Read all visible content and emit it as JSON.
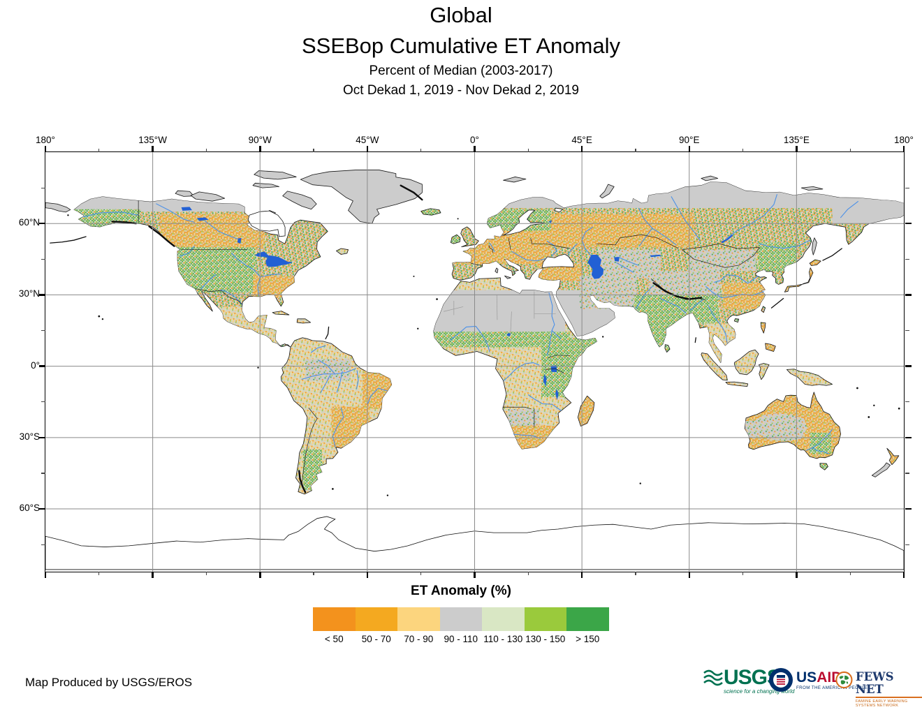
{
  "title": {
    "line1": "Global",
    "line2": "SSEBop Cumulative ET Anomaly"
  },
  "subtitle": {
    "line1": "Percent of Median (2003-2017)",
    "line2": "Oct Dekad 1, 2019 - Nov Dekad 2, 2019"
  },
  "axes": {
    "top_labels": [
      "180°",
      "135°W",
      "90°W",
      "45°W",
      "0°",
      "45°E",
      "90°E",
      "135°E",
      "180°"
    ],
    "left_labels": [
      "60°N",
      "30°N",
      "0°",
      "30°S",
      "60°S"
    ]
  },
  "legend": {
    "title": "ET Anomaly (%)",
    "classes": [
      {
        "label": "< 50",
        "color": "#F3921D"
      },
      {
        "label": "50 - 70",
        "color": "#F4A920"
      },
      {
        "label": "70 - 90",
        "color": "#FCD57E"
      },
      {
        "label": "90 - 110",
        "color": "#CCCCCC"
      },
      {
        "label": "110 - 130",
        "color": "#D9E7C4"
      },
      {
        "label": "130 - 150",
        "color": "#9ACA3C"
      },
      {
        "label": "> 150",
        "color": "#3BA648"
      }
    ]
  },
  "footer": {
    "credit": "Map Produced by USGS/EROS"
  },
  "logos": {
    "usgs": {
      "name": "USGS",
      "tagline": "science for a changing world"
    },
    "usaid": {
      "name_prefix": "US",
      "name_suffix": "AID",
      "tagline": "FROM THE AMERICAN PEOPLE"
    },
    "fewsnet": {
      "name": "FEWS NET",
      "tagline": "FAMINE EARLY WARNING SYSTEMS NETWORK"
    }
  },
  "map": {
    "colors": {
      "ocean": "#ffffff",
      "lake": "#2260d4",
      "river": "#4a90e8",
      "coast": "#141414",
      "grid": "#8a8a8a",
      "no_data": "#cccccc"
    }
  }
}
